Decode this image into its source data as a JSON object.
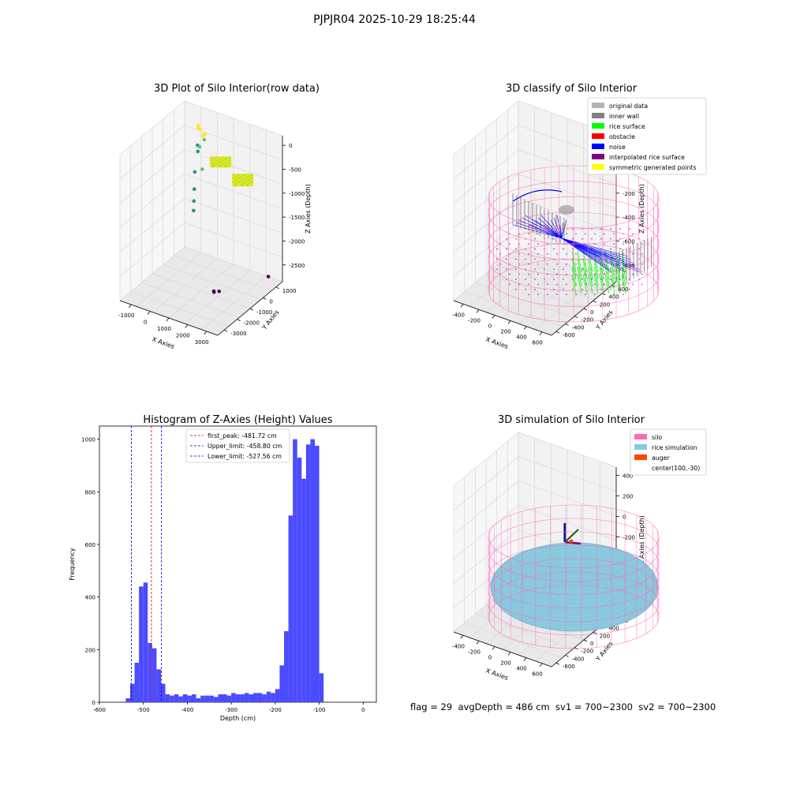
{
  "suptitle": "PJPJR04 2025-10-29 18:25:44",
  "footer": "flag = 29  avgDepth = 486 cm  sv1 = 700~2300  sv2 = 700~2300",
  "colors": {
    "panel": "#f2f2f2",
    "grid": "#d7d7d7",
    "hist_bar": "#4b4bff",
    "first_peak": "#e00000",
    "limit": "#0000cc",
    "silo": "#ff69b4",
    "rice": "#87c8de",
    "auger": "#ff4500"
  },
  "chart_data": [
    {
      "type": "scatter",
      "title": "3D Plot of Silo Interior(row data)",
      "xlabel": "X Axies",
      "ylabel": "Y Axies",
      "zlabel": "Z Axies (Depth)",
      "x_ticks": [
        "-1000",
        "0",
        "1000",
        "2000",
        "3000"
      ],
      "y_ticks": [
        "1000",
        "0",
        "-1000",
        "-2000",
        "-3000"
      ],
      "z_ticks": [
        "0",
        "-500",
        "-1000",
        "-1500",
        "-2000",
        "-2500"
      ],
      "xlim": [
        -1500,
        3500
      ],
      "ylim": [
        -3000,
        1500
      ],
      "zlim": [
        -2700,
        100
      ],
      "colormap": "viridis",
      "points": [
        {
          "x": -300,
          "y": 800,
          "z": -50,
          "c": 0.9
        },
        {
          "x": -250,
          "y": 750,
          "z": -80,
          "c": 0.92
        },
        {
          "x": -200,
          "y": 800,
          "z": -100,
          "c": 0.95
        },
        {
          "x": 100,
          "y": 600,
          "z": -150,
          "c": 0.88
        },
        {
          "x": 150,
          "y": 650,
          "z": -120,
          "c": 0.9
        },
        {
          "x": 200,
          "y": 550,
          "z": -200,
          "c": 0.86
        },
        {
          "x": -250,
          "y": 700,
          "z": -400,
          "c": 0.45
        },
        {
          "x": -200,
          "y": 650,
          "z": -500,
          "c": 0.44
        },
        {
          "x": 0,
          "y": 500,
          "z": -350,
          "c": 0.65
        },
        {
          "x": 500,
          "y": 0,
          "z": -600,
          "c": 0.7
        },
        {
          "x": -100,
          "y": 300,
          "z": -800,
          "c": 0.6
        },
        {
          "x": -50,
          "y": 200,
          "z": -1100,
          "c": 0.55
        },
        {
          "x": 0,
          "y": 100,
          "z": -1300,
          "c": 0.52
        },
        {
          "x": -50,
          "y": 150,
          "z": -1500,
          "c": 0.5
        },
        {
          "x": 1900,
          "y": -1100,
          "z": -2500,
          "c": 0.05
        },
        {
          "x": 1950,
          "y": -1150,
          "z": -2500,
          "c": 0.05
        },
        {
          "x": 2100,
          "y": -1000,
          "z": -2500,
          "c": 0.05
        },
        {
          "x": 3000,
          "y": 1200,
          "z": -2600,
          "c": 0.05
        }
      ]
    },
    {
      "type": "scatter",
      "title": "3D classify of Silo Interior",
      "xlabel": "X Axies",
      "ylabel": "Y Axies",
      "zlabel": "Z Axies (Depth)",
      "x_ticks": [
        "-400",
        "-200",
        "0",
        "200",
        "400",
        "600"
      ],
      "y_ticks": [
        "600",
        "400",
        "200",
        "0",
        "-200",
        "-400",
        "-600"
      ],
      "z_ticks": [
        "200",
        "0",
        "-200",
        "-400",
        "-600",
        "-800"
      ],
      "xlim": [
        -500,
        700
      ],
      "ylim": [
        -700,
        700
      ],
      "zlim": [
        -900,
        350
      ],
      "legend_position": "upper right",
      "legend": [
        {
          "label": "original data",
          "color": "#b4b4b4"
        },
        {
          "label": "inner wall",
          "color": "#808080"
        },
        {
          "label": "rice surface",
          "color": "#00ff00"
        },
        {
          "label": "obstacle",
          "color": "#ff0000"
        },
        {
          "label": "noise",
          "color": "#0000ff"
        },
        {
          "label": "interpolated rice surface",
          "color": "#800080"
        },
        {
          "label": "symmetric generated points",
          "color": "#ffff00"
        }
      ]
    },
    {
      "type": "bar",
      "title": "Histogram of Z-Axies (Height) Values",
      "xlabel": "Depth (cm)",
      "ylabel": "Frequency",
      "xlim": [
        -600,
        30
      ],
      "ylim": [
        0,
        1050
      ],
      "x_ticks": [
        -600,
        -500,
        -400,
        -300,
        -200,
        -100,
        0
      ],
      "y_ticks": [
        0,
        200,
        400,
        600,
        800,
        1000
      ],
      "bin_width": 10,
      "first_bin_start": -550,
      "values": [
        2,
        15,
        70,
        150,
        440,
        455,
        225,
        205,
        125,
        70,
        30,
        25,
        30,
        22,
        30,
        25,
        30,
        15,
        25,
        25,
        25,
        20,
        30,
        30,
        25,
        35,
        30,
        30,
        35,
        30,
        35,
        35,
        30,
        40,
        35,
        50,
        140,
        270,
        710,
        1000,
        930,
        850,
        980,
        1000,
        975,
        110
      ],
      "vlines": [
        {
          "label": "first_peak: -481.72 cm",
          "x": -481.72,
          "color": "#e00000"
        },
        {
          "label": "Upper_limit: -458.80 cm",
          "x": -458.8,
          "color": "#0000cc"
        },
        {
          "label": "Lower_limit: -527.56 cm",
          "x": -527.56,
          "color": "#0000cc"
        }
      ]
    },
    {
      "type": "scatter",
      "title": "3D simulation of Silo Interior",
      "xlabel": "X Axies",
      "ylabel": "Y Axies",
      "zlabel": "Z Axies (Depth)",
      "x_ticks": [
        "-400",
        "-200",
        "0",
        "200",
        "400",
        "600"
      ],
      "y_ticks": [
        "600",
        "400",
        "200",
        "0",
        "-200",
        "-400",
        "-600"
      ],
      "z_ticks": [
        "400",
        "200",
        "0",
        "-200",
        "-400",
        "-600",
        "-800"
      ],
      "xlim": [
        -500,
        700
      ],
      "ylim": [
        -700,
        700
      ],
      "zlim": [
        -900,
        450
      ],
      "legend_position": "upper right",
      "legend": [
        {
          "label": "silo",
          "color": "#ff69b4"
        },
        {
          "label": "rice simulation",
          "color": "#87c8de"
        },
        {
          "label": "auger",
          "color": "#ff4500"
        },
        {
          "label": "center(100,-30)",
          "color": ""
        }
      ]
    }
  ]
}
